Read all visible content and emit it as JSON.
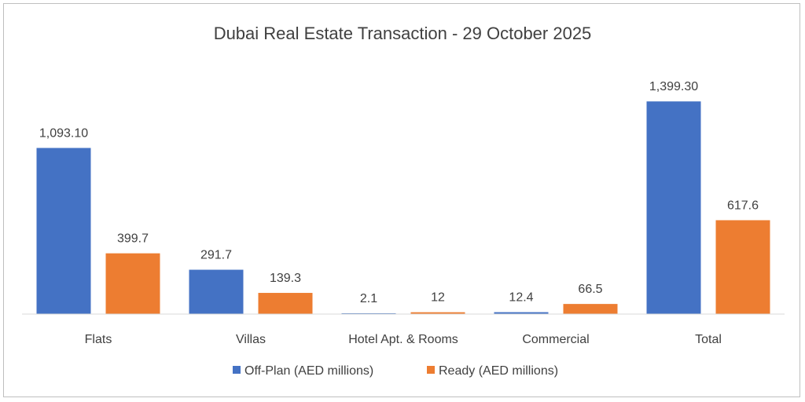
{
  "chart_data": {
    "type": "bar",
    "title": "Dubai Real Estate Transaction - 29 October 2025",
    "categories": [
      "Flats",
      "Villas",
      "Hotel Apt. & Rooms",
      "Commercial",
      "Total"
    ],
    "series": [
      {
        "name": "Off-Plan (AED millions)",
        "color": "#4472c4",
        "values": [
          1093.1,
          291.7,
          2.1,
          12.4,
          1399.3
        ],
        "labels": [
          "1,093.10",
          "291.7",
          "2.1",
          "12.4",
          "1,399.30"
        ]
      },
      {
        "name": "Ready (AED millions)",
        "color": "#ed7d31",
        "values": [
          399.7,
          139.3,
          12,
          66.5,
          617.6
        ],
        "labels": [
          "399.7",
          "139.3",
          "12",
          "66.5",
          "617.6"
        ]
      }
    ],
    "xlabel": "",
    "ylabel": "",
    "ylim": [
      0,
      1550
    ],
    "grid": false,
    "legend": "bottom"
  }
}
